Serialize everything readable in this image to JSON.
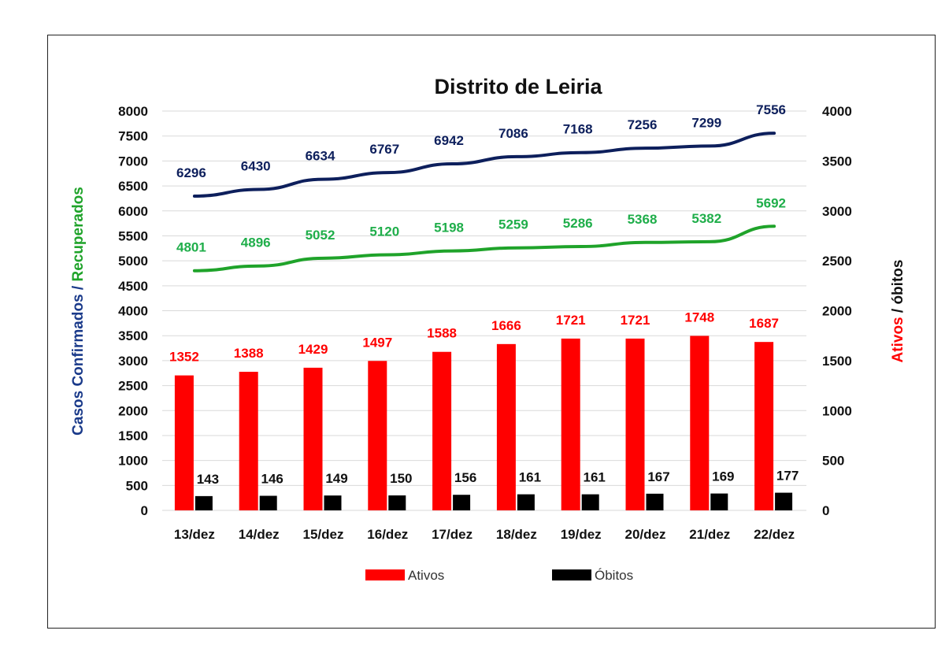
{
  "chart_data": {
    "type": "bar+line",
    "title": "Distrito de Leiria",
    "categories": [
      "13/dez",
      "14/dez",
      "15/dez",
      "16/dez",
      "17/dez",
      "18/dez",
      "19/dez",
      "20/dez",
      "21/dez",
      "22/dez"
    ],
    "y_left": {
      "label_part1": "Casos Confirmados",
      "label_sep": " / ",
      "label_part2": "Recuperados",
      "range": [
        0,
        8000
      ],
      "ticks": [
        "0",
        "500",
        "1000",
        "1500",
        "2000",
        "2500",
        "3000",
        "3500",
        "4000",
        "4500",
        "5000",
        "5500",
        "6000",
        "6500",
        "7000",
        "7500",
        "8000"
      ]
    },
    "y_right": {
      "label_part1": "Ativos",
      "label_sep": " / ",
      "label_part2": "óbitos",
      "range": [
        0,
        4000
      ],
      "ticks": [
        "0",
        "500",
        "1000",
        "1500",
        "2000",
        "2500",
        "3000",
        "3500",
        "4000"
      ]
    },
    "series": [
      {
        "name": "Casos Confirmados",
        "kind": "line",
        "axis": "left",
        "color": "#0d1f5c",
        "values": [
          6296,
          6430,
          6634,
          6767,
          6942,
          7086,
          7168,
          7256,
          7299,
          7556
        ]
      },
      {
        "name": "Recuperados",
        "kind": "line",
        "axis": "left",
        "color": "#1fa32a",
        "label_color": "#1fae4a",
        "values": [
          4801,
          4896,
          5052,
          5120,
          5198,
          5259,
          5286,
          5368,
          5382,
          5692
        ]
      },
      {
        "name": "Ativos",
        "kind": "bar",
        "axis": "right",
        "color": "#ff0000",
        "values": [
          1352,
          1388,
          1429,
          1497,
          1588,
          1666,
          1721,
          1721,
          1748,
          1687
        ]
      },
      {
        "name": "Óbitos",
        "kind": "bar",
        "axis": "right",
        "color": "#000000",
        "values": [
          143,
          146,
          149,
          150,
          156,
          161,
          161,
          167,
          169,
          177
        ]
      }
    ],
    "legend": {
      "placement": "bottom",
      "items": [
        {
          "name": "Ativos",
          "color": "#ff0000"
        },
        {
          "name": "Óbitos",
          "color": "#000000"
        }
      ]
    },
    "grid": true
  }
}
